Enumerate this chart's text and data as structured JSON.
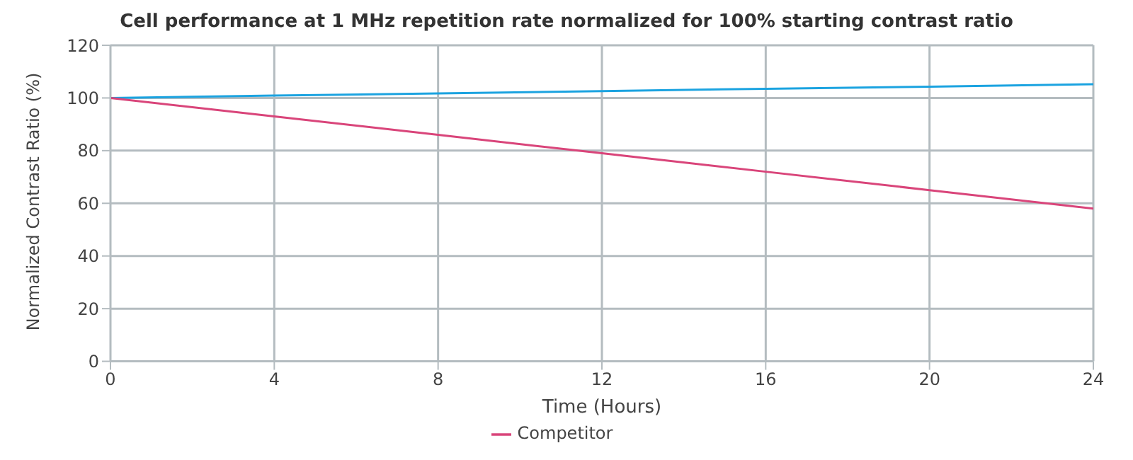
{
  "chart_data": {
    "type": "line",
    "title": "Cell performance at 1 MHz repetition rate normalized for 100% starting contrast ratio",
    "xlabel": "Time (Hours)",
    "ylabel": "Normalized Contrast Ratio (%)",
    "x": [
      0,
      4,
      8,
      12,
      16,
      20,
      24
    ],
    "series": [
      {
        "color": "#1ba3e0",
        "values": [
          100,
          100.9,
          101.7,
          102.6,
          103.5,
          104.3,
          105.2
        ]
      },
      {
        "name": "Competitor",
        "color": "#d9457a",
        "values": [
          100,
          93,
          86,
          79,
          72,
          65,
          58
        ]
      }
    ],
    "xlim": [
      0,
      24
    ],
    "xticks": [
      0,
      4,
      8,
      12,
      16,
      20,
      24
    ],
    "ylim": [
      0,
      120
    ],
    "yticks": [
      0,
      20,
      40,
      60,
      80,
      100,
      120
    ],
    "grid": true,
    "legend": "bottom",
    "marker": "none",
    "line_style": "solid"
  }
}
